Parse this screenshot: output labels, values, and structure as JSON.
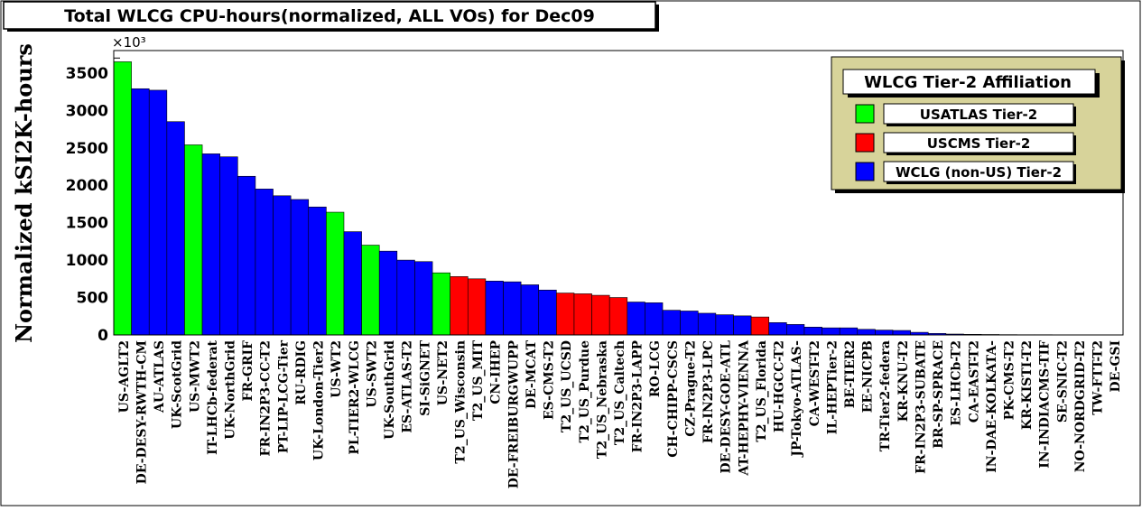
{
  "chart_data": {
    "type": "bar",
    "title": "Total WLCG CPU-hours(normalized, ALL VOs) for Dec09",
    "ylabel": "Normalized kSI2K-hours",
    "xlabel": "",
    "y_exponent_label": "×10³",
    "ylim": [
      0,
      3800
    ],
    "yticks": [
      0,
      500,
      1000,
      1500,
      2000,
      2500,
      3000,
      3500
    ],
    "grid": false,
    "legend_placement": "top-right",
    "legend": {
      "title": "WLCG Tier-2 Affiliation",
      "entries": [
        {
          "name": "USATLAS Tier-2",
          "color": "#00ff00"
        },
        {
          "name": "USCMS Tier-2",
          "color": "#ff0000"
        },
        {
          "name": "WCLG (non-US) Tier-2",
          "color": "#0000ff"
        }
      ]
    },
    "group_colors": {
      "G": "#00ff00",
      "R": "#ff0000",
      "B": "#0000ff"
    },
    "categories": [
      "US-AGLT2",
      "DE-DESY-RWTH-CM",
      "AU-ATLAS",
      "UK-ScotGrid",
      "US-MWT2",
      "IT-LHCb-federat",
      "UK-NorthGrid",
      "FR-GRIF",
      "FR-IN2P3-CC-T2",
      "PT-LIP-LCG-Tier",
      "RU-RDIG",
      "UK-London-Tier2",
      "US-WT2",
      "PL-TIER2-WLCG",
      "US-SWT2",
      "UK-SouthGrid",
      "ES-ATLAS-T2",
      "SI-SiGNET",
      "US-NET2",
      "T2_US_Wisconsin",
      "T2_US_MIT",
      "CN-IHEP",
      "DE-FREIBURGWUPP",
      "DE-MCAT",
      "ES-CMS-T2",
      "T2_US_UCSD",
      "T2_US_Purdue",
      "T2_US_Nebraska",
      "T2_US_Caltech",
      "FR-IN2P3-LAPP",
      "RO-LCG",
      "CH-CHIPP-CSCS",
      "CZ-Prague-T2",
      "FR-IN2P3-LPC",
      "DE-DESY-GOE-ATL",
      "AT-HEPHY-VIENNA",
      "T2_US_Florida",
      "HU-HGCC-T2",
      "JP-Tokyo-ATLAS-",
      "CA-WEST-T2",
      "IL-HEPTier-2",
      "BE-TIER2",
      "EE-NICPB",
      "TR-Tier2-federa",
      "KR-KNU-T2",
      "FR-IN2P3-SUBATE",
      "BR-SP-SPRACE",
      "ES-LHCb-T2",
      "CA-EAST-T2",
      "IN-DAE-KOLKATA-",
      "PK-CMS-T2",
      "KR-KISTI-T2",
      "IN-INDIACMS-TIF",
      "SE-SNIC-T2",
      "NO-NORDGRID-T2",
      "TW-FTT-T2",
      "DE-GSI"
    ],
    "groups": [
      "G",
      "B",
      "B",
      "B",
      "G",
      "B",
      "B",
      "B",
      "B",
      "B",
      "B",
      "B",
      "G",
      "B",
      "G",
      "B",
      "B",
      "B",
      "G",
      "R",
      "R",
      "B",
      "B",
      "B",
      "B",
      "R",
      "R",
      "R",
      "R",
      "B",
      "B",
      "B",
      "B",
      "B",
      "B",
      "B",
      "R",
      "B",
      "B",
      "B",
      "B",
      "B",
      "B",
      "B",
      "B",
      "B",
      "B",
      "B",
      "B",
      "B",
      "B",
      "B",
      "B",
      "B",
      "B",
      "B",
      "B"
    ],
    "values": [
      3650,
      3290,
      3270,
      2850,
      2540,
      2420,
      2380,
      2120,
      1950,
      1860,
      1810,
      1710,
      1640,
      1380,
      1200,
      1120,
      1000,
      980,
      830,
      780,
      750,
      720,
      710,
      670,
      600,
      560,
      550,
      530,
      500,
      440,
      430,
      330,
      320,
      290,
      270,
      255,
      240,
      165,
      140,
      105,
      95,
      95,
      75,
      65,
      60,
      35,
      20,
      12,
      8,
      6,
      4,
      3,
      3,
      2,
      2,
      1,
      1
    ]
  }
}
